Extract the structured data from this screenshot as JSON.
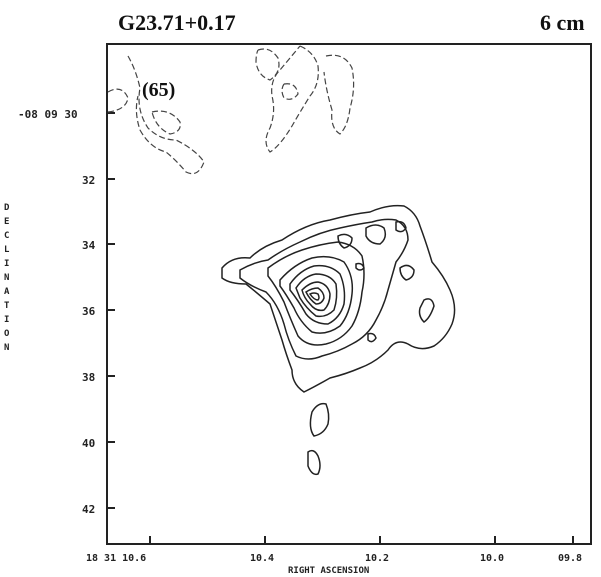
{
  "header": {
    "source_name": "G23.71+0.17",
    "band": "6 cm"
  },
  "panel_label": "(65)",
  "axes": {
    "y_title_letters": [
      "D",
      "E",
      "C",
      "L",
      "I",
      "N",
      "A",
      "T",
      "I",
      "O",
      "N"
    ],
    "y_ticks": [
      "-08 09  30",
      "32",
      "34",
      "36",
      "38",
      "40",
      "42"
    ],
    "x_title": "RIGHT ASCENSION",
    "x_ticks": [
      "18 31 10.6",
      "10.4",
      "10.2",
      "10.0",
      "09.8"
    ]
  },
  "colors": {
    "ink": "#222222",
    "background": "#ffffff"
  }
}
